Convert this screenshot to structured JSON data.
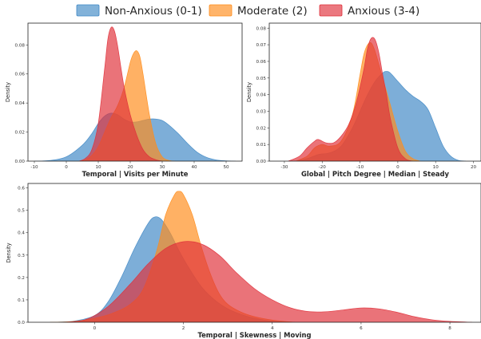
{
  "colors": {
    "non_anxious": "#3f88c5",
    "moderate": "#ff8c1a",
    "anxious": "#e0303a"
  },
  "legend": {
    "placement": "top-center",
    "entries": [
      "Non-Anxious (0-1)",
      "Moderate (2)",
      "Anxious (3-4)"
    ]
  },
  "chart_data": [
    {
      "type": "area",
      "kind": "kde",
      "xlabel": "Temporal | Visits per Minute",
      "ylabel": "Density",
      "xlim": [
        -12,
        55
      ],
      "ylim": [
        0,
        0.095
      ],
      "xticks": [
        -10,
        0,
        10,
        20,
        30,
        40,
        50
      ],
      "yticks": [
        0.0,
        0.02,
        0.04,
        0.06,
        0.08
      ],
      "ytick_labels": [
        "0.00",
        "0.02",
        "0.04",
        "0.06",
        "0.08"
      ],
      "grid": false,
      "series": [
        {
          "name": "Non-Anxious (0-1)",
          "x": [
            -10,
            -5,
            0,
            5,
            8,
            10,
            12,
            14,
            16,
            18,
            20,
            22,
            24,
            26,
            28,
            30,
            32,
            35,
            38,
            41,
            44,
            47,
            50,
            53
          ],
          "y": [
            0,
            0.0005,
            0.003,
            0.011,
            0.019,
            0.026,
            0.031,
            0.033,
            0.032,
            0.029,
            0.027,
            0.027,
            0.028,
            0.029,
            0.029,
            0.028,
            0.025,
            0.019,
            0.012,
            0.006,
            0.0025,
            0.0008,
            0.0002,
            0
          ]
        },
        {
          "name": "Moderate (2)",
          "x": [
            4,
            6,
            8,
            10,
            12,
            14,
            16,
            18,
            20,
            21,
            22,
            23,
            24,
            26,
            28,
            30,
            32,
            34
          ],
          "y": [
            0,
            0.001,
            0.004,
            0.01,
            0.02,
            0.03,
            0.038,
            0.05,
            0.068,
            0.074,
            0.076,
            0.072,
            0.06,
            0.032,
            0.012,
            0.003,
            0.0005,
            0
          ]
        },
        {
          "name": "Anxious (3-4)",
          "x": [
            4,
            6,
            8,
            10,
            12,
            13,
            14,
            15,
            16,
            18,
            20,
            22,
            24,
            26,
            28,
            30
          ],
          "y": [
            0,
            0.002,
            0.008,
            0.026,
            0.064,
            0.084,
            0.092,
            0.09,
            0.08,
            0.052,
            0.032,
            0.018,
            0.008,
            0.003,
            0.001,
            0
          ]
        }
      ]
    },
    {
      "type": "area",
      "kind": "kde",
      "xlabel": "Global | Pitch Degree | Median | Steady",
      "ylabel": "Density",
      "xlim": [
        -34,
        22
      ],
      "ylim": [
        0,
        0.083
      ],
      "xticks": [
        -30,
        -20,
        -10,
        0,
        10,
        20
      ],
      "yticks": [
        0.0,
        0.01,
        0.02,
        0.03,
        0.04,
        0.05,
        0.06,
        0.07,
        0.08
      ],
      "ytick_labels": [
        "0.00",
        "0.01",
        "0.02",
        "0.03",
        "0.04",
        "0.05",
        "0.06",
        "0.07",
        "0.08"
      ],
      "grid": false,
      "series": [
        {
          "name": "Non-Anxious (0-1)",
          "x": [
            -27,
            -24,
            -21,
            -18,
            -15,
            -12,
            -10,
            -8,
            -6,
            -4,
            -3,
            -2,
            0,
            2,
            4,
            6,
            8,
            10,
            12,
            14,
            16,
            18
          ],
          "y": [
            0,
            0.0015,
            0.004,
            0.005,
            0.009,
            0.02,
            0.03,
            0.04,
            0.048,
            0.053,
            0.054,
            0.053,
            0.048,
            0.043,
            0.039,
            0.036,
            0.031,
            0.02,
            0.009,
            0.003,
            0.0005,
            0
          ]
        },
        {
          "name": "Moderate (2)",
          "x": [
            -27,
            -24,
            -22,
            -20,
            -18,
            -15,
            -12,
            -10,
            -9,
            -8,
            -7,
            -6,
            -5,
            -4,
            -2,
            0,
            2,
            4,
            6
          ],
          "y": [
            0,
            0.003,
            0.008,
            0.01,
            0.009,
            0.012,
            0.028,
            0.052,
            0.064,
            0.07,
            0.071,
            0.066,
            0.058,
            0.05,
            0.034,
            0.018,
            0.006,
            0.0015,
            0
          ]
        },
        {
          "name": "Anxious (3-4)",
          "x": [
            -29,
            -26,
            -24,
            -22,
            -21,
            -19,
            -17,
            -15,
            -13,
            -11,
            -9,
            -8,
            -7,
            -6,
            -5,
            -4,
            -3,
            -2,
            0,
            2,
            4
          ],
          "y": [
            0,
            0.003,
            0.008,
            0.012,
            0.013,
            0.011,
            0.011,
            0.015,
            0.022,
            0.035,
            0.055,
            0.068,
            0.074,
            0.073,
            0.065,
            0.052,
            0.04,
            0.026,
            0.008,
            0.0015,
            0
          ]
        }
      ]
    },
    {
      "type": "area",
      "kind": "kde",
      "xlabel": "Temporal | Skewness | Moving",
      "ylabel": "Density",
      "xlim": [
        -1.5,
        8.7
      ],
      "ylim": [
        0,
        0.62
      ],
      "xticks": [
        0,
        2,
        4,
        6,
        8
      ],
      "yticks": [
        0.0,
        0.1,
        0.2,
        0.3,
        0.4,
        0.5,
        0.6
      ],
      "ytick_labels": [
        "0.0",
        "0.1",
        "0.2",
        "0.3",
        "0.4",
        "0.5",
        "0.6"
      ],
      "grid": false,
      "series": [
        {
          "name": "Non-Anxious (0-1)",
          "x": [
            -1.0,
            -0.5,
            0,
            0.3,
            0.6,
            0.9,
            1.2,
            1.35,
            1.5,
            1.7,
            1.9,
            2.1,
            2.4,
            2.7,
            3.0,
            3.3,
            3.6,
            4.0,
            4.5
          ],
          "y": [
            0,
            0.004,
            0.03,
            0.09,
            0.2,
            0.33,
            0.44,
            0.47,
            0.46,
            0.4,
            0.32,
            0.25,
            0.16,
            0.1,
            0.06,
            0.035,
            0.018,
            0.005,
            0
          ]
        },
        {
          "name": "Moderate (2)",
          "x": [
            -1.0,
            -0.5,
            0,
            0.4,
            0.8,
            1.1,
            1.4,
            1.6,
            1.8,
            1.9,
            2.0,
            2.2,
            2.4,
            2.6,
            2.8,
            3.0,
            3.3,
            3.6,
            4.0,
            4.5
          ],
          "y": [
            0,
            0.003,
            0.018,
            0.04,
            0.08,
            0.15,
            0.32,
            0.48,
            0.57,
            0.585,
            0.57,
            0.48,
            0.34,
            0.22,
            0.13,
            0.08,
            0.045,
            0.025,
            0.01,
            0
          ]
        },
        {
          "name": "Anxious (3-4)",
          "x": [
            -0.7,
            -0.2,
            0.3,
            0.8,
            1.2,
            1.6,
            2.0,
            2.4,
            2.8,
            3.2,
            3.6,
            4.0,
            4.4,
            4.8,
            5.2,
            5.6,
            6.0,
            6.4,
            6.8,
            7.2,
            7.6,
            8.0,
            8.5
          ],
          "y": [
            0,
            0.012,
            0.07,
            0.17,
            0.26,
            0.33,
            0.36,
            0.35,
            0.3,
            0.22,
            0.15,
            0.1,
            0.065,
            0.048,
            0.047,
            0.055,
            0.064,
            0.06,
            0.045,
            0.025,
            0.011,
            0.004,
            0
          ]
        }
      ]
    }
  ]
}
